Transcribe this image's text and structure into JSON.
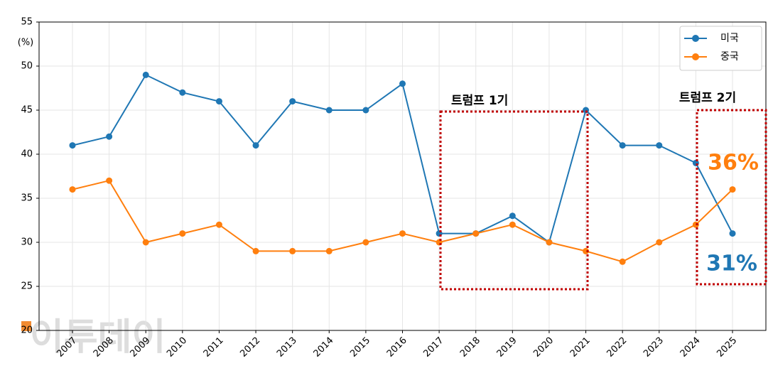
{
  "chart_data": {
    "type": "line",
    "y_label": "(%)",
    "categories": [
      "2007",
      "2008",
      "2009",
      "2010",
      "2011",
      "2012",
      "2013",
      "2014",
      "2015",
      "2016",
      "2017",
      "2018",
      "2019",
      "2020",
      "2021",
      "2022",
      "2023",
      "2024",
      "2025"
    ],
    "series": [
      {
        "name": "미국",
        "color": "#1f77b4",
        "values": [
          41,
          42,
          49,
          47,
          46,
          41,
          46,
          45,
          45,
          48,
          31,
          31,
          33,
          30,
          45,
          41,
          41,
          39,
          31
        ]
      },
      {
        "name": "중국",
        "color": "#ff7f0e",
        "values": [
          36,
          37,
          30,
          31,
          32,
          29,
          29,
          29,
          30,
          31,
          30,
          31,
          32,
          30,
          29,
          27.8,
          30,
          32,
          36
        ]
      }
    ],
    "ylim": [
      20,
      55
    ],
    "yticks": [
      20,
      25,
      30,
      35,
      40,
      45,
      50,
      55
    ],
    "grid": true,
    "legend": "upper right",
    "annotations": [
      "트럼프 1기",
      "트럼프 2기",
      "36%",
      "31%"
    ],
    "watermark": "이투데이"
  }
}
